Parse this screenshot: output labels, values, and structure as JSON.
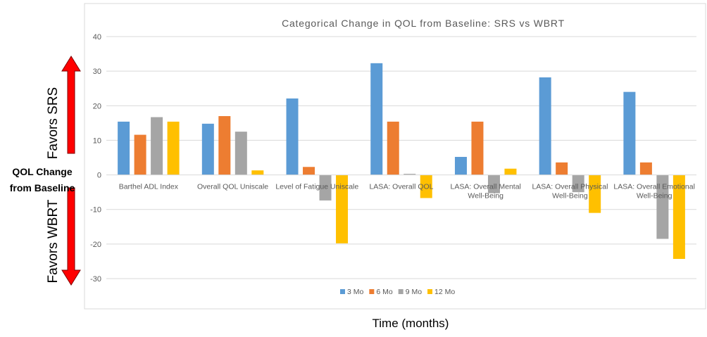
{
  "chart_data": {
    "type": "bar",
    "title": "Categorical Change in QOL from Baseline: SRS vs WBRT",
    "xlabel": "Time (months)",
    "ylabel": "QOL Change from Baseline",
    "ylabel_lines": [
      "QOL Change",
      "from Baseline"
    ],
    "favors_top": "Favors SRS",
    "favors_bottom": "Favors WBRT",
    "ylim": [
      -30,
      40
    ],
    "yticks": [
      40,
      30,
      20,
      10,
      0,
      -10,
      -20,
      -30
    ],
    "grid": true,
    "legend_position": "bottom",
    "categories": [
      [
        "Barthel ADL Index"
      ],
      [
        "Overall QOL Uniscale"
      ],
      [
        "Level of Fatigue Uniscale"
      ],
      [
        "LASA: Overall QOL"
      ],
      [
        "LASA: Overall Mental",
        "Well-Being"
      ],
      [
        "LASA: Overall Physical",
        "Well-Being"
      ],
      [
        "LASA: Overall Emotional",
        "Well-Being"
      ]
    ],
    "series": [
      {
        "name": "3 Mo",
        "color": "#5B9BD5",
        "values": [
          15.4,
          14.8,
          22.1,
          32.3,
          5.2,
          28.2,
          24.0
        ]
      },
      {
        "name": "6 Mo",
        "color": "#ED7D31",
        "values": [
          11.6,
          17.0,
          2.3,
          15.4,
          15.4,
          3.6,
          3.6
        ]
      },
      {
        "name": "9 Mo",
        "color": "#A5A5A5",
        "values": [
          16.7,
          12.5,
          -7.4,
          0.3,
          -5.3,
          -5.0,
          -18.5
        ]
      },
      {
        "name": "12 Mo",
        "color": "#FFC000",
        "values": [
          15.4,
          1.3,
          -19.8,
          -6.7,
          1.8,
          -11.0,
          -24.3
        ]
      }
    ]
  },
  "colors": {
    "arrow": "#ff0000",
    "gridline": "#d9d9d9",
    "border": "#d9d9d9",
    "tick_text": "#595959"
  }
}
